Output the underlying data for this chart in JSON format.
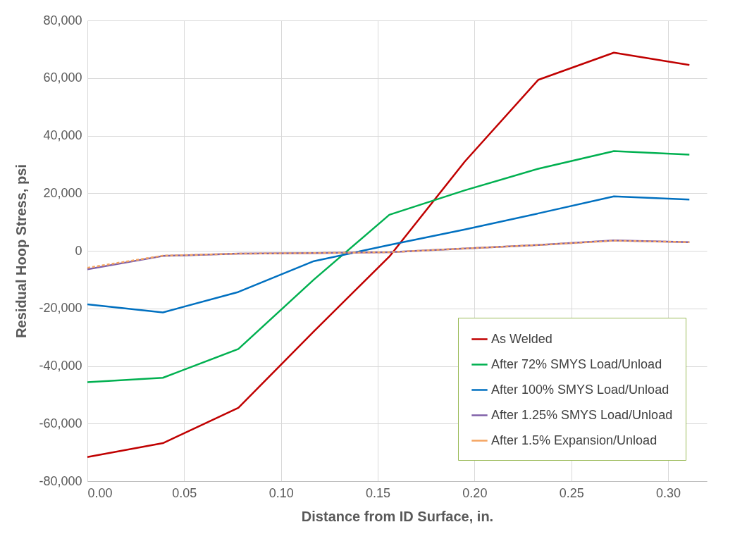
{
  "chart_data": {
    "type": "line",
    "xlabel": "Distance from ID Surface, in.",
    "ylabel": "Residual Hoop Stress, psi",
    "x": [
      0,
      0.039,
      0.078,
      0.117,
      0.156,
      0.195,
      0.233,
      0.272,
      0.311
    ],
    "series": [
      {
        "name": "As Welded",
        "color": "#c00000",
        "values": [
          -71600,
          -66800,
          -54500,
          -28000,
          -2000,
          31000,
          59400,
          68800,
          64500
        ]
      },
      {
        "name": "After 72% SMYS Load/Unload",
        "color": "#00b050",
        "values": [
          -45600,
          -44100,
          -34100,
          -10000,
          12500,
          21000,
          28500,
          34600,
          33400
        ]
      },
      {
        "name": "After 100% SMYS Load/Unload",
        "color": "#0070c0",
        "values": [
          -18600,
          -21400,
          -14300,
          -3600,
          2000,
          7400,
          13000,
          18900,
          17800
        ]
      },
      {
        "name": "After 1.25% SMYS Load/Unload",
        "color": "#7f5fa8",
        "values": [
          -6400,
          -1800,
          -1000,
          -800,
          -500,
          800,
          2000,
          3600,
          3000
        ]
      },
      {
        "name": "After 1.5% Expansion/Unload",
        "color": "#f4a460",
        "line_style": "dashed",
        "values": [
          -5900,
          -1700,
          -1000,
          -800,
          -500,
          800,
          2000,
          3500,
          3000
        ]
      }
    ],
    "xlim": [
      0,
      0.32
    ],
    "xticks": [
      {
        "value": 0,
        "label": "0.00"
      },
      {
        "value": 0.05,
        "label": "0.05"
      },
      {
        "value": 0.1,
        "label": "0.10"
      },
      {
        "value": 0.15,
        "label": "0.15"
      },
      {
        "value": 0.2,
        "label": "0.20"
      },
      {
        "value": 0.25,
        "label": "0.25"
      },
      {
        "value": 0.3,
        "label": "0.30"
      }
    ],
    "ylim": [
      -80000,
      80000
    ],
    "yticks": [
      {
        "value": -80000,
        "label": "-80,000"
      },
      {
        "value": -60000,
        "label": "-60,000"
      },
      {
        "value": -40000,
        "label": "-40,000"
      },
      {
        "value": -20000,
        "label": "-20,000"
      },
      {
        "value": 0,
        "label": "0"
      },
      {
        "value": 20000,
        "label": "20,000"
      },
      {
        "value": 40000,
        "label": "40,000"
      },
      {
        "value": 60000,
        "label": "60,000"
      },
      {
        "value": 80000,
        "label": "80,000"
      }
    ],
    "grid": true,
    "legend": "bottom right",
    "line_style": "solid",
    "marker": "none"
  }
}
